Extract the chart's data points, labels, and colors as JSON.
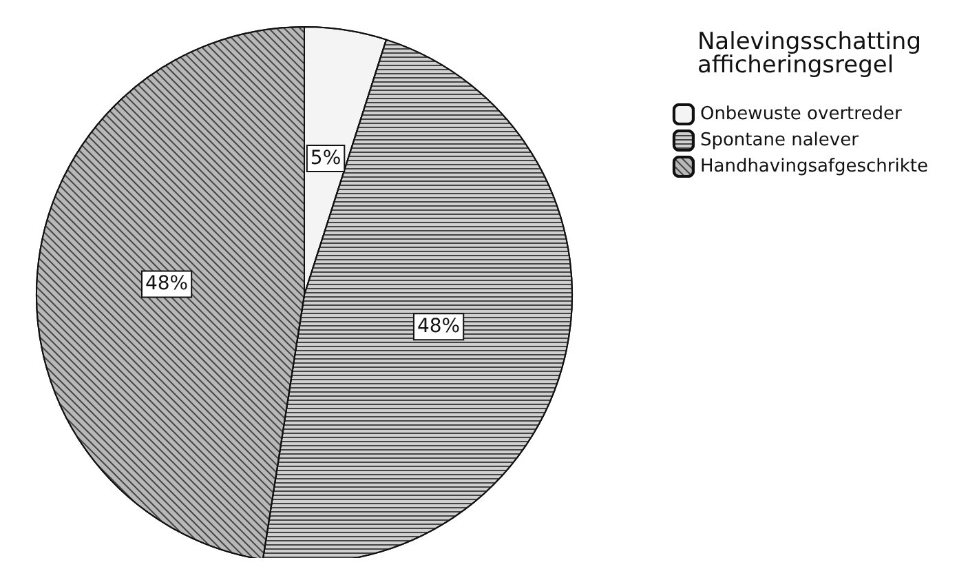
{
  "chart_data": {
    "type": "pie",
    "legend_title": "Nalevingsschatting\nafficheringsregel",
    "categories": [
      "Onbewuste overtreder",
      "Spontane nalever",
      "Handhavingsafgeschrikte"
    ],
    "values": [
      5,
      48,
      48
    ],
    "colors": [
      "#f4f4f4",
      "#d0d0d0",
      "#b8b8b8"
    ],
    "value_labels": [
      "5%",
      "48%",
      "48%"
    ],
    "legend": "top right"
  }
}
